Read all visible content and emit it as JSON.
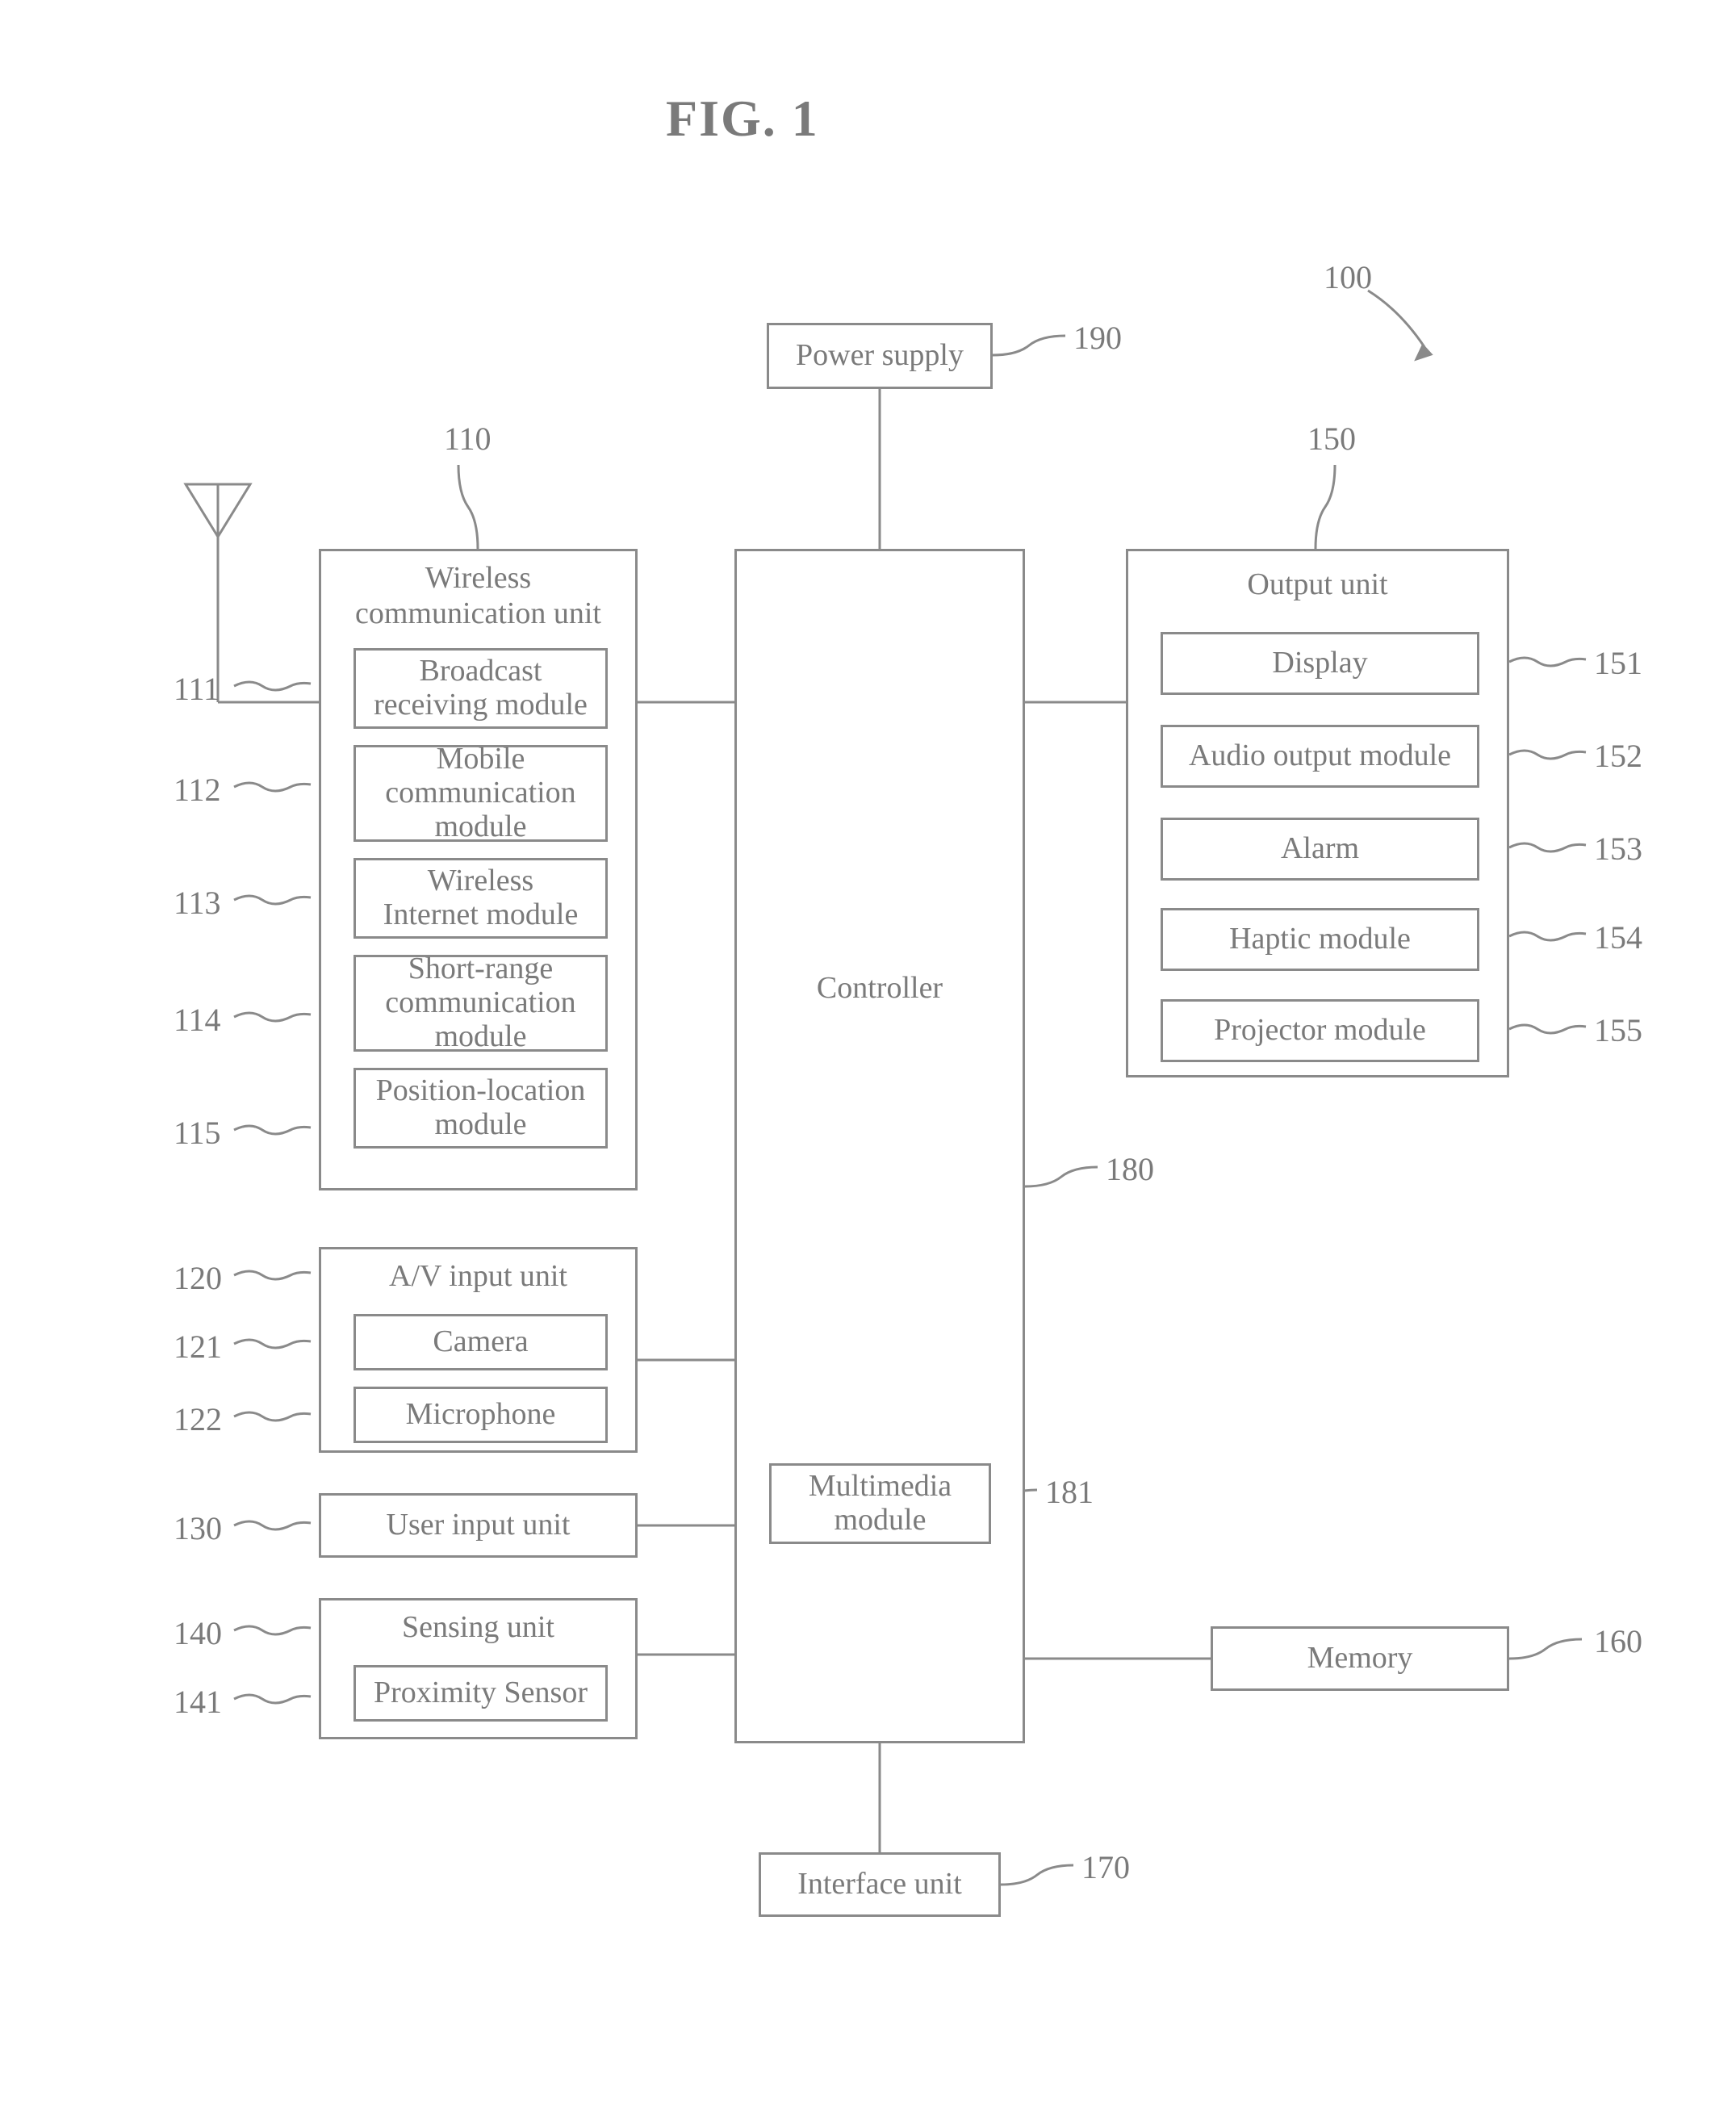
{
  "type": "block-diagram",
  "figure_title": "FIG. 1",
  "colors": {
    "line": "#8a8a8a",
    "text": "#7a7a7a",
    "background": "#ffffff"
  },
  "stroke_width": 3,
  "font": {
    "family": "Times New Roman",
    "size_label": 38,
    "size_ref": 40,
    "size_title": 64
  },
  "refs": {
    "r100": "100",
    "r190": "190",
    "r110": "110",
    "r150": "150",
    "r111": "111",
    "r112": "112",
    "r113": "113",
    "r114": "114",
    "r115": "115",
    "r151": "151",
    "r152": "152",
    "r153": "153",
    "r154": "154",
    "r155": "155",
    "r120": "120",
    "r121": "121",
    "r122": "122",
    "r130": "130",
    "r140": "140",
    "r141": "141",
    "r160": "160",
    "r170": "170",
    "r180": "180",
    "r181": "181"
  },
  "blocks": {
    "power": "Power supply",
    "controller": "Controller",
    "multimedia": "Multimedia module",
    "memory": "Memory",
    "interface": "Interface unit",
    "user_input": "User input unit",
    "wcu": {
      "title": "Wireless communication unit",
      "items": [
        "Broadcast receiving module",
        "Mobile communication module",
        "Wireless Internet module",
        "Short-range communication module",
        "Position-location module"
      ]
    },
    "output": {
      "title": "Output unit",
      "items": [
        "Display",
        "Audio output module",
        "Alarm",
        "Haptic module",
        "Projector module"
      ]
    },
    "av": {
      "title": "A/V input unit",
      "items": [
        "Camera",
        "Microphone"
      ]
    },
    "sensing": {
      "title": "Sensing unit",
      "items": [
        "Proximity Sensor"
      ]
    }
  }
}
